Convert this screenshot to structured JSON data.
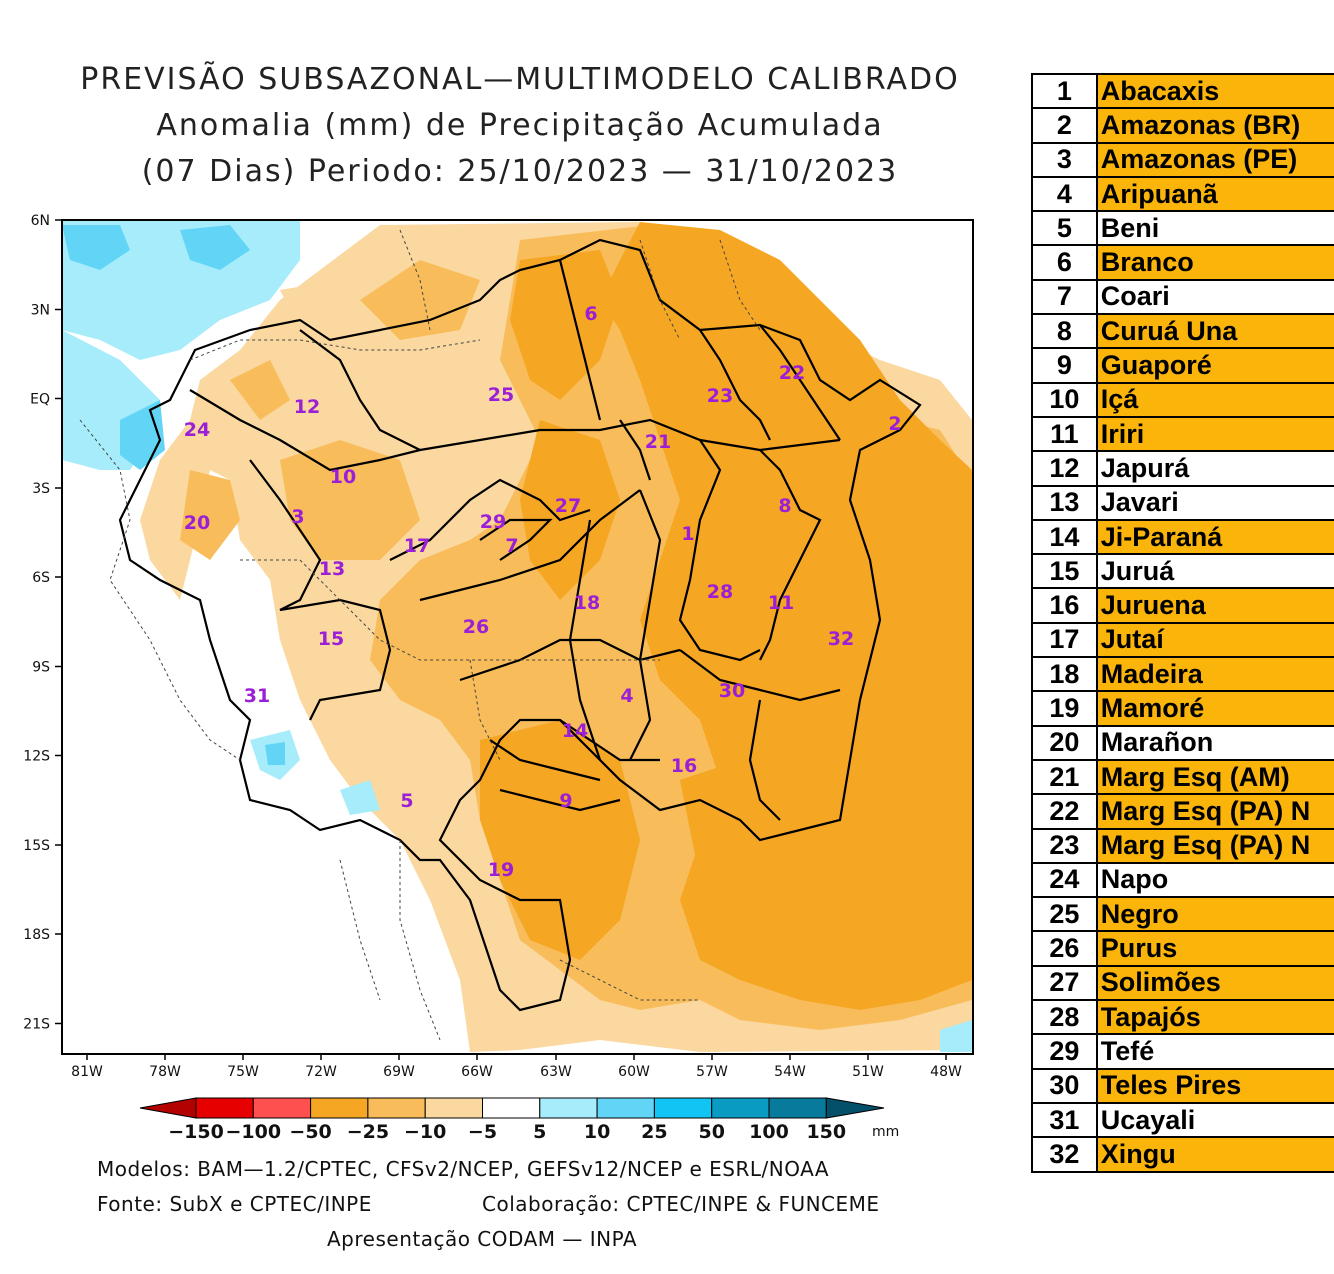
{
  "title": {
    "line1": "PREVISÃO SUBSAZONAL—MULTIMODELO CALIBRADO",
    "line2": "Anomalia (mm) de Precipitação Acumulada",
    "line3": "(07 Dias) Periodo: 25/10/2023 — 31/10/2023"
  },
  "axes": {
    "lat_labels": [
      "6N",
      "3N",
      "EQ",
      "3S",
      "6S",
      "9S",
      "12S",
      "15S",
      "18S",
      "21S"
    ],
    "lon_labels": [
      "81W",
      "78W",
      "75W",
      "72W",
      "69W",
      "66W",
      "63W",
      "60W",
      "57W",
      "54W",
      "51W",
      "48W"
    ]
  },
  "colorbar": {
    "labels": [
      "−150",
      "−100",
      "−50",
      "−25",
      "−10",
      "−5",
      "5",
      "10",
      "25",
      "50",
      "100",
      "150"
    ],
    "unit": "mm",
    "colors": {
      "lt_neg150": "#b30000",
      "neg150_neg100": "#e60000",
      "neg100_neg50": "#ff5050",
      "neg50_neg25": "#f5a623",
      "neg25_neg10": "#f8bd5a",
      "neg10_neg5": "#fad8a0",
      "neg5_5": "#ffffff",
      "p5_10": "#a6ecfb",
      "p10_25": "#62d4f6",
      "p25_50": "#11c4f3",
      "p50_100": "#0a9bc2",
      "p100_150": "#087a9c",
      "gt_150": "#04506a"
    }
  },
  "map_labels": [
    {
      "id": "1",
      "x": 1
    },
    {
      "id": "2",
      "x": 2
    },
    {
      "id": "3",
      "x": 3
    },
    {
      "id": "4",
      "x": 4
    },
    {
      "id": "5",
      "x": 5
    },
    {
      "id": "6",
      "x": 6
    },
    {
      "id": "7",
      "x": 7
    },
    {
      "id": "8",
      "x": 8
    },
    {
      "id": "9",
      "x": 9
    },
    {
      "id": "10",
      "x": 10
    },
    {
      "id": "11",
      "x": 11
    },
    {
      "id": "12",
      "x": 12
    },
    {
      "id": "13",
      "x": 13
    },
    {
      "id": "14",
      "x": 14
    },
    {
      "id": "15",
      "x": 15
    },
    {
      "id": "16",
      "x": 16
    },
    {
      "id": "17",
      "x": 17
    },
    {
      "id": "18",
      "x": 18
    },
    {
      "id": "19",
      "x": 19
    },
    {
      "id": "20",
      "x": 20
    },
    {
      "id": "21",
      "x": 21
    },
    {
      "id": "22",
      "x": 22
    },
    {
      "id": "23",
      "x": 23
    },
    {
      "id": "24",
      "x": 24
    },
    {
      "id": "25",
      "x": 25
    },
    {
      "id": "26",
      "x": 26
    },
    {
      "id": "27",
      "x": 27
    },
    {
      "id": "28",
      "x": 28
    },
    {
      "id": "29",
      "x": 29
    },
    {
      "id": "30",
      "x": 30
    },
    {
      "id": "31",
      "x": 31
    },
    {
      "id": "32",
      "x": 32
    }
  ],
  "footer": {
    "models": "Modelos: BAM—1.2/CPTEC, CFSv2/NCEP, GEFSv12/NCEP e ESRL/NOAA",
    "source": "Fonte: SubX e CPTEC/INPE",
    "collab": "Colaboração: CPTEC/INPE & FUNCEME",
    "presentation": "Apresentação CODAM — INPA"
  },
  "basins": [
    {
      "num": "1",
      "name": "Abacaxis",
      "highlight": true
    },
    {
      "num": "2",
      "name": "Amazonas (BR)",
      "highlight": true
    },
    {
      "num": "3",
      "name": "Amazonas (PE)",
      "highlight": true
    },
    {
      "num": "4",
      "name": "Aripuanã",
      "highlight": true
    },
    {
      "num": "5",
      "name": "Beni",
      "highlight": false
    },
    {
      "num": "6",
      "name": "Branco",
      "highlight": true
    },
    {
      "num": "7",
      "name": "Coari",
      "highlight": false
    },
    {
      "num": "8",
      "name": "Curuá Una",
      "highlight": true
    },
    {
      "num": "9",
      "name": "Guaporé",
      "highlight": true
    },
    {
      "num": "10",
      "name": "Içá",
      "highlight": true
    },
    {
      "num": "11",
      "name": "Iriri",
      "highlight": true
    },
    {
      "num": "12",
      "name": "Japurá",
      "highlight": false
    },
    {
      "num": "13",
      "name": "Javari",
      "highlight": false
    },
    {
      "num": "14",
      "name": "Ji-Paraná",
      "highlight": true
    },
    {
      "num": "15",
      "name": "Juruá",
      "highlight": false
    },
    {
      "num": "16",
      "name": "Juruena",
      "highlight": true
    },
    {
      "num": "17",
      "name": "Jutaí",
      "highlight": true
    },
    {
      "num": "18",
      "name": "Madeira",
      "highlight": true
    },
    {
      "num": "19",
      "name": "Mamoré",
      "highlight": true
    },
    {
      "num": "20",
      "name": "Marañon",
      "highlight": false
    },
    {
      "num": "21",
      "name": "Marg Esq (AM)",
      "highlight": true
    },
    {
      "num": "22",
      "name": "Marg Esq (PA) N",
      "highlight": true
    },
    {
      "num": "23",
      "name": "Marg Esq (PA) N",
      "highlight": true
    },
    {
      "num": "24",
      "name": "Napo",
      "highlight": false
    },
    {
      "num": "25",
      "name": "Negro",
      "highlight": true
    },
    {
      "num": "26",
      "name": "Purus",
      "highlight": true
    },
    {
      "num": "27",
      "name": "Solimões",
      "highlight": true
    },
    {
      "num": "28",
      "name": "Tapajós",
      "highlight": true
    },
    {
      "num": "29",
      "name": "Tefé",
      "highlight": false
    },
    {
      "num": "30",
      "name": "Teles Pires",
      "highlight": true
    },
    {
      "num": "31",
      "name": "Ucayali",
      "highlight": false
    },
    {
      "num": "32",
      "name": "Xingu",
      "highlight": true
    }
  ],
  "table_highlight_color": "#fbb40a"
}
